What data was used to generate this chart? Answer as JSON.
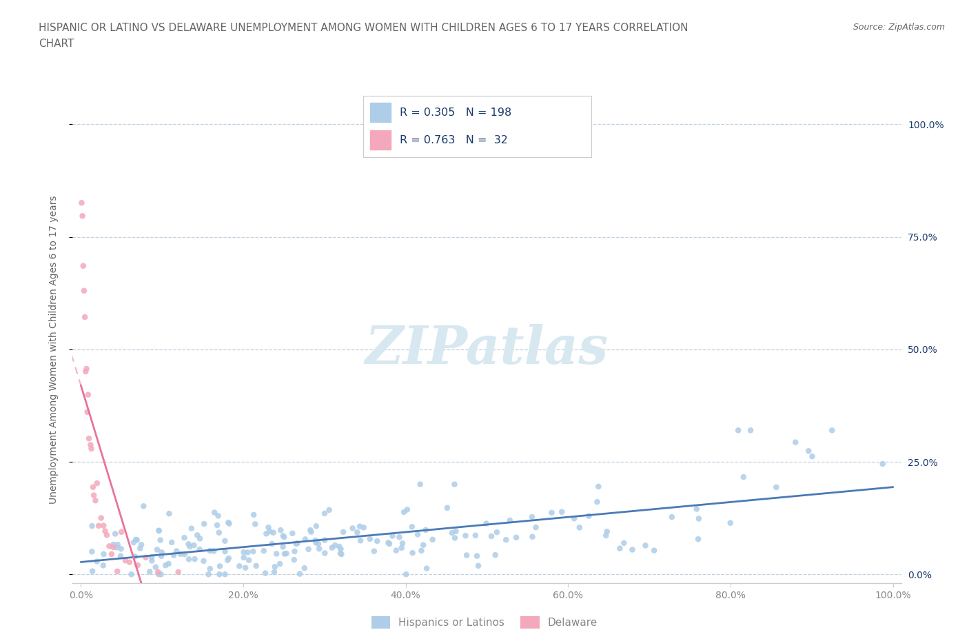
{
  "title_line1": "HISPANIC OR LATINO VS DELAWARE UNEMPLOYMENT AMONG WOMEN WITH CHILDREN AGES 6 TO 17 YEARS CORRELATION",
  "title_line2": "CHART",
  "source": "Source: ZipAtlas.com",
  "ylabel": "Unemployment Among Women with Children Ages 6 to 17 years",
  "right_yticklabels": [
    "0.0%",
    "25.0%",
    "50.0%",
    "75.0%",
    "100.0%"
  ],
  "xtick_labels": [
    "0.0%",
    "20.0%",
    "40.0%",
    "60.0%",
    "80.0%",
    "100.0%"
  ],
  "title_color": "#666666",
  "source_color": "#666666",
  "text_color": "#1a3a6b",
  "blue_scatter_color": "#aecde8",
  "pink_scatter_color": "#f4a8bb",
  "blue_trend_color": "#4a7ab5",
  "pink_trend_color": "#e8739a",
  "grid_color": "#c0d0e0",
  "watermark_color": "#d8e8f0",
  "legend_border_color": "#cccccc",
  "axis_color": "#cccccc",
  "tick_color": "#888888",
  "ylabel_color": "#666666"
}
